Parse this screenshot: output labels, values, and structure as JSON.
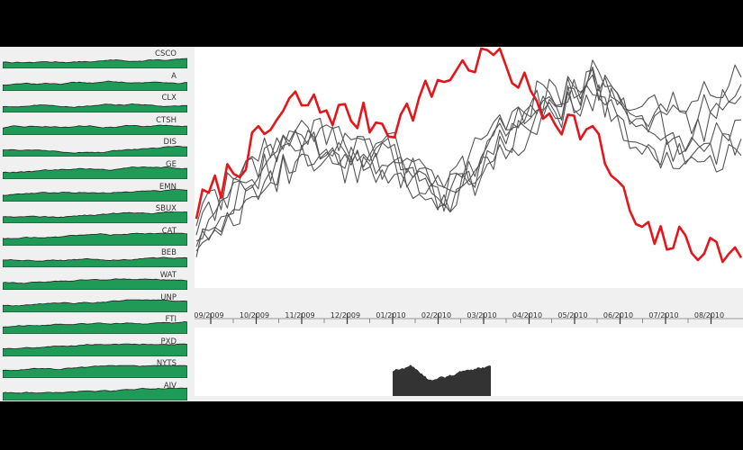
{
  "colors": {
    "sparkline_fill": "#1f9a57",
    "highlight_series": "#e3161b",
    "other_series": "#555555",
    "context_fill": "#333333"
  },
  "chart_data": [
    {
      "type": "area",
      "role": "small-multiples",
      "tickers": [
        "CSCO",
        "A",
        "CLX",
        "CTSH",
        "DIS",
        "GE",
        "EMN",
        "SBUX",
        "CAT",
        "BEB",
        "WAT",
        "UNP",
        "FTI",
        "PXD",
        "NYTS",
        "AIV"
      ]
    },
    {
      "type": "line",
      "role": "focus",
      "x": [
        "09/2009",
        "10/2009",
        "11/2009",
        "12/2009",
        "01/2010",
        "02/2010",
        "03/2010",
        "04/2010",
        "05/2010",
        "06/2010",
        "07/2010",
        "08/2010"
      ],
      "series": [
        {
          "highlight": true,
          "values": [
            32,
            55,
            78,
            72,
            68,
            88,
            99,
            75,
            64,
            21,
            18,
            12
          ]
        },
        {
          "values": [
            25,
            48,
            65,
            60,
            58,
            40,
            62,
            80,
            88,
            65,
            58,
            70
          ]
        },
        {
          "values": [
            20,
            42,
            60,
            55,
            55,
            38,
            60,
            78,
            90,
            70,
            62,
            80
          ]
        },
        {
          "values": [
            18,
            38,
            55,
            52,
            50,
            35,
            55,
            72,
            85,
            75,
            70,
            85
          ]
        },
        {
          "values": [
            22,
            45,
            62,
            58,
            52,
            36,
            58,
            75,
            82,
            60,
            52,
            62
          ]
        },
        {
          "values": [
            15,
            35,
            52,
            50,
            48,
            33,
            52,
            70,
            80,
            72,
            80,
            88
          ]
        },
        {
          "values": [
            28,
            50,
            68,
            62,
            55,
            40,
            65,
            82,
            86,
            58,
            48,
            55
          ]
        }
      ]
    },
    {
      "type": "area",
      "role": "context"
    }
  ]
}
